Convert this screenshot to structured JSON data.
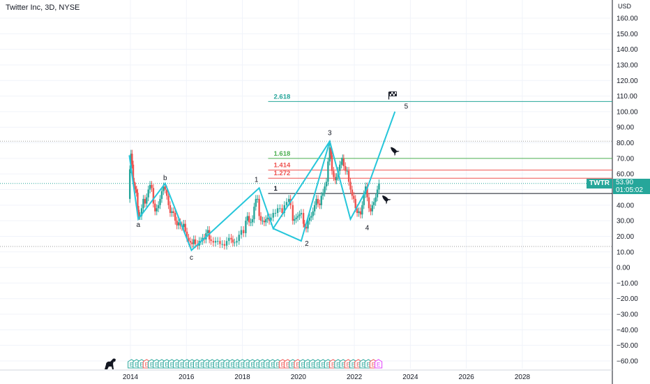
{
  "header": {
    "title": "Twitter Inc, 3D, NYSE"
  },
  "axis": {
    "currency": "USD"
  },
  "price_label": {
    "symbol": "TWTR",
    "price": "53.90",
    "countdown": "01:05:02"
  },
  "colors": {
    "wave": "#26c6da",
    "up": "#26a69a",
    "down": "#ef5350",
    "fib_green": "#4caf50",
    "fib_red": "#f06292",
    "fib_teal": "#26a69a",
    "earn_green": "#26a69a",
    "earn_red": "#ef5350",
    "earn_future": "#e040fb"
  },
  "icons": {
    "rocket": "rocket-icon",
    "flag": "checkered-flag-icon",
    "dino": "dino-logo-icon"
  },
  "chart_data": {
    "type": "line",
    "title": "Twitter Inc, 3D, NYSE",
    "xlabel": "",
    "ylabel": "USD",
    "x_ticks": [
      "2014",
      "2016",
      "2018",
      "2020",
      "2022",
      "2024",
      "2026",
      "2028"
    ],
    "y_ticks": [
      "160.00",
      "150.00",
      "140.00",
      "130.00",
      "120.00",
      "110.00",
      "100.00",
      "90.00",
      "80.00",
      "70.00",
      "60.00",
      "50.00",
      "40.00",
      "30.00",
      "20.00",
      "10.00",
      "0.00",
      "−10.00",
      "−20.00",
      "−30.00",
      "−40.00",
      "−50.00",
      "−60.00"
    ],
    "ylim": [
      -65,
      167
    ],
    "xlim": [
      2013.9,
      2030.0
    ],
    "price_series": [
      [
        2013.95,
        44
      ],
      [
        2013.98,
        63
      ],
      [
        2014.02,
        73
      ],
      [
        2014.06,
        66
      ],
      [
        2014.1,
        55
      ],
      [
        2014.14,
        52
      ],
      [
        2014.18,
        50
      ],
      [
        2014.22,
        48
      ],
      [
        2014.26,
        37
      ],
      [
        2014.3,
        33
      ],
      [
        2014.34,
        33
      ],
      [
        2014.4,
        38
      ],
      [
        2014.46,
        44
      ],
      [
        2014.52,
        41
      ],
      [
        2014.58,
        45
      ],
      [
        2014.64,
        50
      ],
      [
        2014.7,
        53
      ],
      [
        2014.76,
        51
      ],
      [
        2014.82,
        41
      ],
      [
        2014.88,
        36
      ],
      [
        2014.94,
        38
      ],
      [
        2015.0,
        40
      ],
      [
        2015.06,
        44
      ],
      [
        2015.12,
        49
      ],
      [
        2015.18,
        52
      ],
      [
        2015.24,
        50
      ],
      [
        2015.3,
        46
      ],
      [
        2015.36,
        40
      ],
      [
        2015.42,
        35
      ],
      [
        2015.48,
        36
      ],
      [
        2015.54,
        35
      ],
      [
        2015.6,
        30
      ],
      [
        2015.66,
        27
      ],
      [
        2015.72,
        29
      ],
      [
        2015.78,
        27
      ],
      [
        2015.84,
        26
      ],
      [
        2015.9,
        28
      ],
      [
        2015.96,
        23
      ],
      [
        2016.02,
        19
      ],
      [
        2016.08,
        17
      ],
      [
        2016.14,
        16
      ],
      [
        2016.2,
        15
      ],
      [
        2016.26,
        18
      ],
      [
        2016.32,
        15
      ],
      [
        2016.4,
        14
      ],
      [
        2016.46,
        17
      ],
      [
        2016.52,
        17
      ],
      [
        2016.58,
        19
      ],
      [
        2016.64,
        18
      ],
      [
        2016.7,
        22
      ],
      [
        2016.76,
        24
      ],
      [
        2016.82,
        18
      ],
      [
        2016.88,
        17
      ],
      [
        2016.96,
        16
      ],
      [
        2017.04,
        17
      ],
      [
        2017.12,
        17
      ],
      [
        2017.2,
        15
      ],
      [
        2017.28,
        15
      ],
      [
        2017.36,
        14
      ],
      [
        2017.44,
        17
      ],
      [
        2017.52,
        19
      ],
      [
        2017.6,
        18
      ],
      [
        2017.66,
        16
      ],
      [
        2017.72,
        16
      ],
      [
        2017.8,
        17
      ],
      [
        2017.88,
        21
      ],
      [
        2017.96,
        24
      ],
      [
        2018.04,
        22
      ],
      [
        2018.12,
        30
      ],
      [
        2018.18,
        33
      ],
      [
        2018.24,
        29
      ],
      [
        2018.3,
        29
      ],
      [
        2018.36,
        31
      ],
      [
        2018.42,
        39
      ],
      [
        2018.48,
        44
      ],
      [
        2018.54,
        44
      ],
      [
        2018.6,
        33
      ],
      [
        2018.66,
        30
      ],
      [
        2018.72,
        30
      ],
      [
        2018.78,
        29
      ],
      [
        2018.84,
        31
      ],
      [
        2018.9,
        32
      ],
      [
        2018.96,
        30
      ],
      [
        2019.02,
        32
      ],
      [
        2019.1,
        35
      ],
      [
        2019.18,
        35
      ],
      [
        2019.26,
        38
      ],
      [
        2019.34,
        38
      ],
      [
        2019.42,
        35
      ],
      [
        2019.5,
        40
      ],
      [
        2019.58,
        42
      ],
      [
        2019.66,
        44
      ],
      [
        2019.72,
        40
      ],
      [
        2019.8,
        30
      ],
      [
        2019.86,
        31
      ],
      [
        2019.92,
        32
      ],
      [
        2019.98,
        33
      ],
      [
        2020.04,
        34
      ],
      [
        2020.1,
        35
      ],
      [
        2020.18,
        28
      ],
      [
        2020.22,
        26
      ],
      [
        2020.28,
        25
      ],
      [
        2020.34,
        30
      ],
      [
        2020.4,
        32
      ],
      [
        2020.46,
        33
      ],
      [
        2020.52,
        36
      ],
      [
        2020.58,
        40
      ],
      [
        2020.64,
        44
      ],
      [
        2020.7,
        41
      ],
      [
        2020.76,
        40
      ],
      [
        2020.82,
        46
      ],
      [
        2020.88,
        48
      ],
      [
        2020.94,
        52
      ],
      [
        2021.0,
        55
      ],
      [
        2021.06,
        68
      ],
      [
        2021.12,
        77
      ],
      [
        2021.16,
        72
      ],
      [
        2021.2,
        62
      ],
      [
        2021.26,
        58
      ],
      [
        2021.32,
        56
      ],
      [
        2021.36,
        58
      ],
      [
        2021.42,
        62
      ],
      [
        2021.48,
        66
      ],
      [
        2021.54,
        68
      ],
      [
        2021.58,
        70
      ],
      [
        2021.62,
        65
      ],
      [
        2021.68,
        62
      ],
      [
        2021.74,
        62
      ],
      [
        2021.8,
        55
      ],
      [
        2021.86,
        50
      ],
      [
        2021.92,
        46
      ],
      [
        2021.98,
        44
      ],
      [
        2022.04,
        38
      ],
      [
        2022.1,
        35
      ],
      [
        2022.16,
        36
      ],
      [
        2022.22,
        34
      ],
      [
        2022.28,
        40
      ],
      [
        2022.34,
        47
      ],
      [
        2022.4,
        52
      ],
      [
        2022.46,
        45
      ],
      [
        2022.52,
        38
      ],
      [
        2022.58,
        36
      ],
      [
        2022.64,
        40
      ],
      [
        2022.7,
        42
      ],
      [
        2022.76,
        45
      ],
      [
        2022.82,
        50
      ],
      [
        2022.88,
        54
      ]
    ],
    "wave_lines": [
      [
        [
          2013.96,
          72
        ],
        [
          2014.28,
          31
        ],
        [
          2015.24,
          54
        ],
        [
          2016.18,
          11
        ],
        [
          2018.6,
          51
        ],
        [
          2019.1,
          25
        ],
        [
          2021.12,
          81
        ],
        [
          2021.86,
          31
        ],
        [
          2022.46,
          51
        ],
        [
          2023.45,
          100
        ]
      ],
      [
        [
          2019.1,
          25
        ],
        [
          2020.1,
          17
        ],
        [
          2021.12,
          81
        ]
      ]
    ],
    "wave_labels": [
      {
        "text": "a",
        "x": 2014.28,
        "y": 26
      },
      {
        "text": "b",
        "x": 2015.24,
        "y": 56
      },
      {
        "text": "c",
        "x": 2016.18,
        "y": 5
      },
      {
        "text": "1",
        "x": 2018.5,
        "y": 55
      },
      {
        "text": "2",
        "x": 2020.3,
        "y": 14
      },
      {
        "text": "3",
        "x": 2021.12,
        "y": 85
      },
      {
        "text": "4",
        "x": 2022.46,
        "y": 24
      },
      {
        "text": "5",
        "x": 2023.85,
        "y": 102
      }
    ],
    "fib_levels": [
      {
        "label": "2.618",
        "y": 106.5,
        "color": "#26a69a",
        "x_start": 2018.92
      },
      {
        "label": "1.618",
        "y": 70,
        "color": "#4caf50",
        "x_start": 2018.92
      },
      {
        "label": "1.414",
        "y": 62.5,
        "color": "#ef5350",
        "x_start": 2018.92
      },
      {
        "label": "1.272",
        "y": 57.3,
        "color": "#ef5350",
        "x_start": 2018.92
      },
      {
        "label": "1",
        "y": 47.5,
        "color": "#131722",
        "x_start": 2018.92
      }
    ],
    "dotted_levels": [
      {
        "y": 53.9,
        "color": "#26a69a"
      },
      {
        "y": 81,
        "color": "#9e9e9e"
      },
      {
        "y": 13.5,
        "color": "#9e9e9e"
      }
    ],
    "earnings_markers": [
      {
        "x": 2014.04,
        "color": "green"
      },
      {
        "x": 2014.22,
        "color": "green"
      },
      {
        "x": 2014.4,
        "color": "green"
      },
      {
        "x": 2014.58,
        "color": "red"
      },
      {
        "x": 2014.76,
        "color": "green"
      },
      {
        "x": 2014.94,
        "color": "green"
      },
      {
        "x": 2015.12,
        "color": "green"
      },
      {
        "x": 2015.3,
        "color": "green"
      },
      {
        "x": 2015.48,
        "color": "green"
      },
      {
        "x": 2015.66,
        "color": "green"
      },
      {
        "x": 2015.84,
        "color": "green"
      },
      {
        "x": 2016.02,
        "color": "green"
      },
      {
        "x": 2016.2,
        "color": "green"
      },
      {
        "x": 2016.38,
        "color": "green"
      },
      {
        "x": 2016.56,
        "color": "green"
      },
      {
        "x": 2016.74,
        "color": "green"
      },
      {
        "x": 2016.92,
        "color": "green"
      },
      {
        "x": 2017.1,
        "color": "green"
      },
      {
        "x": 2017.28,
        "color": "green"
      },
      {
        "x": 2017.46,
        "color": "green"
      },
      {
        "x": 2017.64,
        "color": "green"
      },
      {
        "x": 2017.82,
        "color": "green"
      },
      {
        "x": 2018.0,
        "color": "green"
      },
      {
        "x": 2018.18,
        "color": "green"
      },
      {
        "x": 2018.36,
        "color": "green"
      },
      {
        "x": 2018.54,
        "color": "green"
      },
      {
        "x": 2018.72,
        "color": "green"
      },
      {
        "x": 2018.9,
        "color": "green"
      },
      {
        "x": 2019.08,
        "color": "green"
      },
      {
        "x": 2019.26,
        "color": "green"
      },
      {
        "x": 2019.44,
        "color": "red"
      },
      {
        "x": 2019.62,
        "color": "red"
      },
      {
        "x": 2019.8,
        "color": "green"
      },
      {
        "x": 2019.98,
        "color": "red"
      },
      {
        "x": 2020.16,
        "color": "green"
      },
      {
        "x": 2020.34,
        "color": "green"
      },
      {
        "x": 2020.52,
        "color": "green"
      },
      {
        "x": 2020.7,
        "color": "green"
      },
      {
        "x": 2020.88,
        "color": "green"
      },
      {
        "x": 2021.06,
        "color": "green"
      },
      {
        "x": 2021.24,
        "color": "red"
      },
      {
        "x": 2021.42,
        "color": "green"
      },
      {
        "x": 2021.6,
        "color": "green"
      },
      {
        "x": 2021.78,
        "color": "red"
      },
      {
        "x": 2021.96,
        "color": "green"
      },
      {
        "x": 2022.14,
        "color": "red"
      },
      {
        "x": 2022.32,
        "color": "green"
      },
      {
        "x": 2022.5,
        "color": "green"
      },
      {
        "x": 2022.68,
        "color": "red"
      },
      {
        "x": 2022.86,
        "color": "future"
      }
    ],
    "earnings_label": "E",
    "rocket_markers": [
      {
        "x": 2023.42,
        "y": 75
      },
      {
        "x": 2023.12,
        "y": 44
      }
    ],
    "flag_marker": {
      "x": 2023.38,
      "y": 110.5
    }
  }
}
